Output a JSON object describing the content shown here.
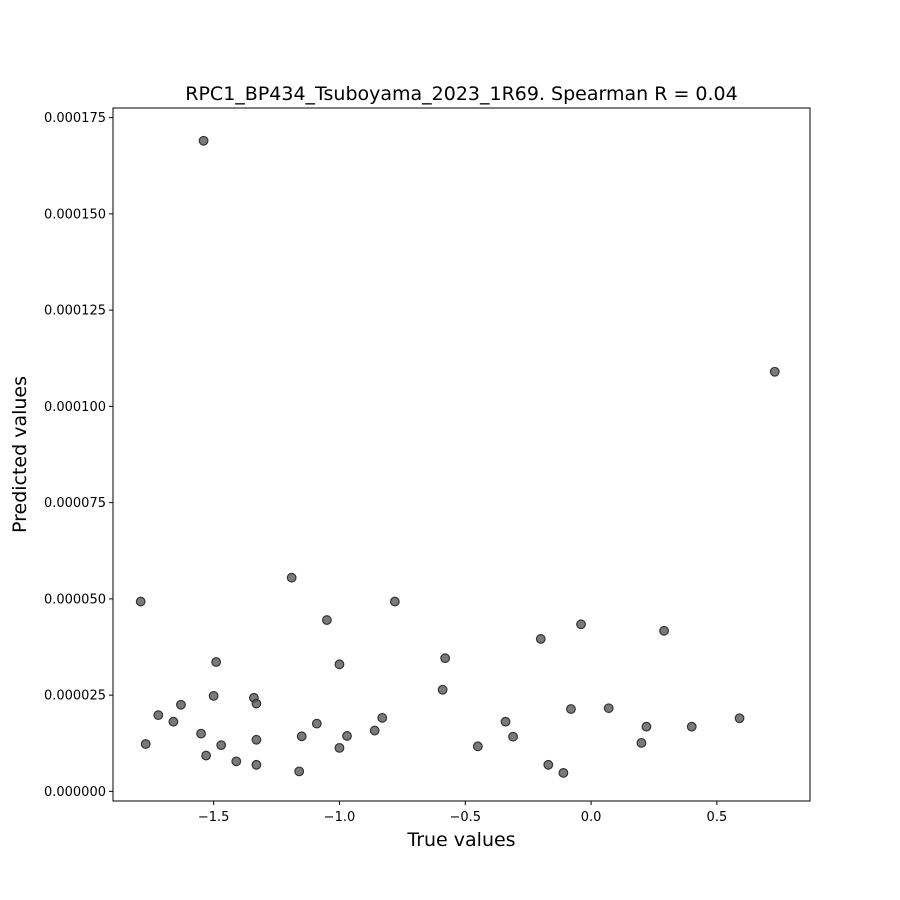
{
  "chart_data": {
    "type": "scatter",
    "title": "RPC1_BP434_Tsuboyama_2023_1R69. Spearman R = 0.04",
    "xlabel": "True values",
    "ylabel": "Predicted values",
    "xlim": [
      -1.9,
      0.87
    ],
    "ylim": [
      -2.5e-06,
      0.0001775
    ],
    "x_ticks": [
      {
        "value": -1.5,
        "label": "−1.5"
      },
      {
        "value": -1.0,
        "label": "−1.0"
      },
      {
        "value": -0.5,
        "label": "−0.5"
      },
      {
        "value": 0.0,
        "label": "0.0"
      },
      {
        "value": 0.5,
        "label": "0.5"
      }
    ],
    "y_ticks": [
      {
        "value": 0.0,
        "label": "0.000000"
      },
      {
        "value": 2.5e-05,
        "label": "0.000025"
      },
      {
        "value": 5e-05,
        "label": "0.000050"
      },
      {
        "value": 7.5e-05,
        "label": "0.000075"
      },
      {
        "value": 0.0001,
        "label": "0.000100"
      },
      {
        "value": 0.000125,
        "label": "0.000125"
      },
      {
        "value": 0.00015,
        "label": "0.000150"
      },
      {
        "value": 0.000175,
        "label": "0.000175"
      }
    ],
    "grid": false,
    "marker_color": "#555555",
    "points": [
      {
        "x": -1.54,
        "y": 0.000169
      },
      {
        "x": 0.73,
        "y": 0.000109
      },
      {
        "x": -1.79,
        "y": 4.93e-05
      },
      {
        "x": -1.77,
        "y": 1.23e-05
      },
      {
        "x": -1.72,
        "y": 1.98e-05
      },
      {
        "x": -1.66,
        "y": 1.81e-05
      },
      {
        "x": -1.63,
        "y": 2.25e-05
      },
      {
        "x": -1.55,
        "y": 1.5e-05
      },
      {
        "x": -1.53,
        "y": 9.3e-06
      },
      {
        "x": -1.5,
        "y": 2.48e-05
      },
      {
        "x": -1.49,
        "y": 3.36e-05
      },
      {
        "x": -1.47,
        "y": 1.2e-05
      },
      {
        "x": -1.41,
        "y": 7.8e-06
      },
      {
        "x": -1.34,
        "y": 2.43e-05
      },
      {
        "x": -1.33,
        "y": 2.28e-05
      },
      {
        "x": -1.33,
        "y": 1.34e-05
      },
      {
        "x": -1.33,
        "y": 6.9e-06
      },
      {
        "x": -1.19,
        "y": 5.55e-05
      },
      {
        "x": -1.16,
        "y": 5.2e-06
      },
      {
        "x": -1.15,
        "y": 1.43e-05
      },
      {
        "x": -1.09,
        "y": 1.76e-05
      },
      {
        "x": -1.05,
        "y": 4.45e-05
      },
      {
        "x": -1.0,
        "y": 3.3e-05
      },
      {
        "x": -1.0,
        "y": 1.13e-05
      },
      {
        "x": -0.97,
        "y": 1.44e-05
      },
      {
        "x": -0.86,
        "y": 1.58e-05
      },
      {
        "x": -0.83,
        "y": 1.91e-05
      },
      {
        "x": -0.78,
        "y": 4.93e-05
      },
      {
        "x": -0.59,
        "y": 2.64e-05
      },
      {
        "x": -0.58,
        "y": 3.46e-05
      },
      {
        "x": -0.45,
        "y": 1.17e-05
      },
      {
        "x": -0.34,
        "y": 1.81e-05
      },
      {
        "x": -0.31,
        "y": 1.42e-05
      },
      {
        "x": -0.2,
        "y": 3.96e-05
      },
      {
        "x": -0.17,
        "y": 6.9e-06
      },
      {
        "x": -0.11,
        "y": 4.8e-06
      },
      {
        "x": -0.08,
        "y": 2.14e-05
      },
      {
        "x": -0.04,
        "y": 4.34e-05
      },
      {
        "x": 0.07,
        "y": 2.16e-05
      },
      {
        "x": 0.2,
        "y": 1.26e-05
      },
      {
        "x": 0.22,
        "y": 1.68e-05
      },
      {
        "x": 0.29,
        "y": 4.17e-05
      },
      {
        "x": 0.4,
        "y": 1.68e-05
      },
      {
        "x": 0.59,
        "y": 1.9e-05
      }
    ]
  }
}
